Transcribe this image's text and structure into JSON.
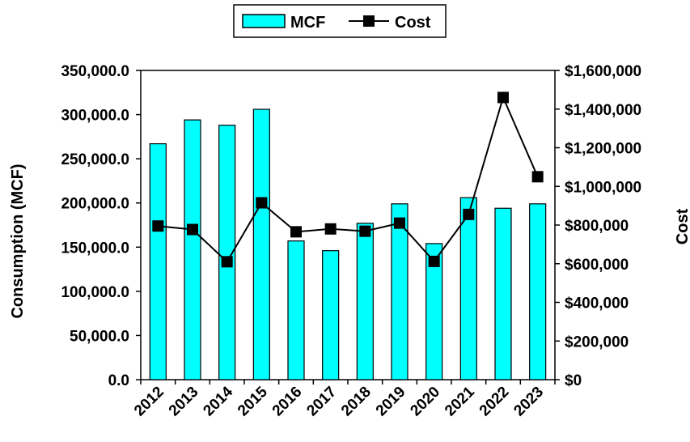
{
  "chart_data": {
    "type": "bar",
    "categories": [
      "2012",
      "2013",
      "2014",
      "2015",
      "2016",
      "2017",
      "2018",
      "2019",
      "2020",
      "2021",
      "2022",
      "2023"
    ],
    "series": [
      {
        "name": "MCF",
        "type": "bar",
        "axis": "left",
        "color": "#00FFFF",
        "values": [
          267000,
          294000,
          288000,
          306000,
          157000,
          146000,
          177000,
          199000,
          154000,
          206000,
          194000,
          199000
        ]
      },
      {
        "name": "Cost",
        "type": "line",
        "axis": "right",
        "color": "#000000",
        "marker": "square",
        "values": [
          795000,
          777000,
          610000,
          915000,
          765000,
          780000,
          768000,
          810000,
          612000,
          855000,
          1460000,
          1050000
        ]
      }
    ],
    "ylabel": "Consumption (MCF)",
    "y2label": "Cost",
    "ylim": [
      0,
      350000
    ],
    "y2lim": [
      0,
      1600000
    ],
    "yticks": [
      "0.0",
      "50,000.0",
      "100,000.0",
      "150,000.0",
      "200,000.0",
      "250,000.0",
      "300,000.0",
      "350,000.0"
    ],
    "y2ticks": [
      "$0",
      "$200,000",
      "$400,000",
      "$600,000",
      "$800,000",
      "$1,000,000",
      "$1,200,000",
      "$1,400,000",
      "$1,600,000"
    ],
    "grid": false,
    "legend_position": "top-center"
  }
}
